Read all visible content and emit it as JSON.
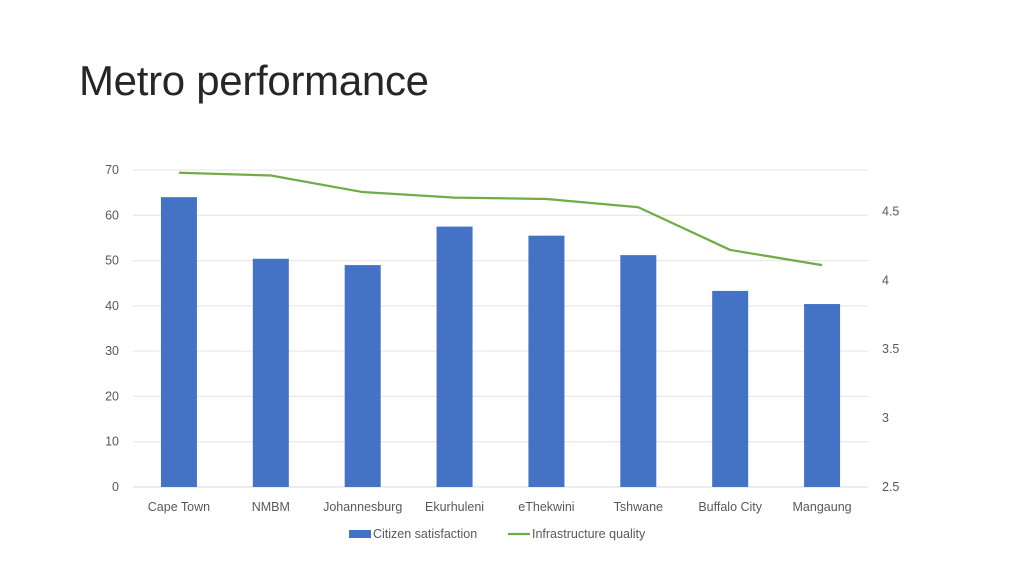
{
  "slide": {
    "title": "Metro performance"
  },
  "chart_data": {
    "type": "bar",
    "title": "Metro performance",
    "categories": [
      "Cape Town",
      "NMBM",
      "Johannesburg",
      "Ekurhuleni",
      "eThekwini",
      "Tshwane",
      "Buffalo City",
      "Mangaung"
    ],
    "series": [
      {
        "name": "Citizen satisfaction",
        "type": "bar",
        "axis": "left",
        "color": "#4472C4",
        "values": [
          64,
          50.4,
          49,
          57.5,
          55.5,
          51.2,
          43.3,
          40.4
        ]
      },
      {
        "name": "Infrastructure quality",
        "type": "line",
        "axis": "right",
        "color": "#70AD47",
        "values": [
          4.78,
          4.76,
          4.64,
          4.6,
          4.59,
          4.53,
          4.22,
          4.11
        ]
      }
    ],
    "y_left": {
      "min": 0,
      "max": 70,
      "ticks": [
        0,
        10,
        20,
        30,
        40,
        50,
        60,
        70
      ]
    },
    "y_right": {
      "min": 2.5,
      "max": 4.8,
      "ticks": [
        2.5,
        3,
        3.5,
        4,
        4.5
      ]
    },
    "xlabel": "",
    "ylabel": "",
    "grid": true,
    "legend": "bottom-center"
  }
}
